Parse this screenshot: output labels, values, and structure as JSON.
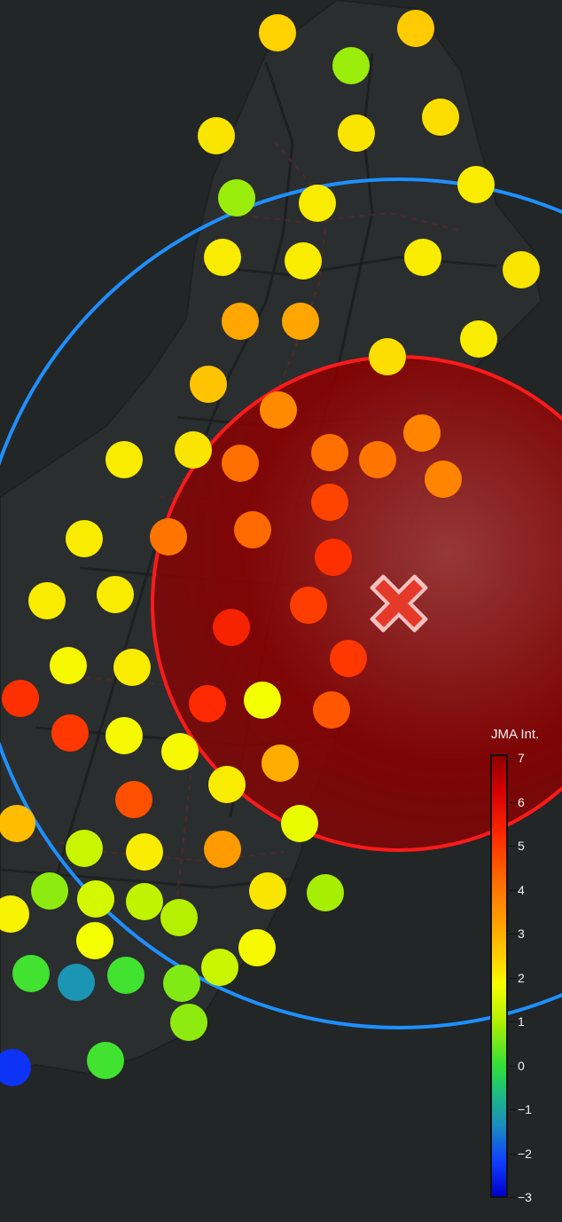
{
  "legend": {
    "title": "JMA Int.",
    "min": -3,
    "max": 7,
    "ticks": [
      "7",
      "6",
      "5",
      "4",
      "3",
      "2",
      "1",
      "0",
      "−1",
      "−2",
      "−3"
    ]
  },
  "epicenter": {
    "icon": "x-mark-icon",
    "color": "#e53a2a",
    "outline": "#f6c1c1"
  },
  "rings": {
    "s_wave_color": "#ff1a1a",
    "p_wave_color": "#1e90ff",
    "s_wave_fill": "#8b0000"
  },
  "stations_intensity": [
    {
      "name": "s01",
      "value": 2.3
    },
    {
      "name": "s02",
      "value": 0.8
    },
    {
      "name": "s03",
      "value": 2.4
    },
    {
      "name": "s04",
      "value": 2.0
    },
    {
      "name": "s05",
      "value": 2.0
    },
    {
      "name": "s06",
      "value": 2.1
    },
    {
      "name": "s07",
      "value": 0.8
    },
    {
      "name": "s08",
      "value": 1.9
    },
    {
      "name": "s09",
      "value": 1.9
    },
    {
      "name": "s10",
      "value": 1.9
    },
    {
      "name": "s11",
      "value": 1.9
    },
    {
      "name": "s12",
      "value": 1.9
    },
    {
      "name": "s13",
      "value": 2.0
    },
    {
      "name": "s14",
      "value": 2.9
    },
    {
      "name": "s15",
      "value": 2.9
    },
    {
      "name": "s16",
      "value": 1.9
    },
    {
      "name": "s17",
      "value": 2.5
    },
    {
      "name": "s18",
      "value": 2.1
    },
    {
      "name": "s19",
      "value": 3.4
    },
    {
      "name": "s20",
      "value": 3.5
    },
    {
      "name": "s21",
      "value": 1.9
    },
    {
      "name": "s22",
      "value": 2.0
    },
    {
      "name": "s23",
      "value": 3.9
    },
    {
      "name": "s24",
      "value": 3.9
    },
    {
      "name": "s25",
      "value": 3.8
    },
    {
      "name": "s26",
      "value": 3.5
    },
    {
      "name": "s27",
      "value": 4.6
    },
    {
      "name": "s28",
      "value": 1.9
    },
    {
      "name": "s29",
      "value": 3.8
    },
    {
      "name": "s30",
      "value": 4.0
    },
    {
      "name": "s31",
      "value": 4.9
    },
    {
      "name": "s32",
      "value": 1.9
    },
    {
      "name": "s33",
      "value": 1.9
    },
    {
      "name": "s34",
      "value": 4.7
    },
    {
      "name": "s35",
      "value": 5.2
    },
    {
      "name": "s36",
      "value": 4.8
    },
    {
      "name": "s37",
      "value": 1.7
    },
    {
      "name": "s38",
      "value": 1.9
    },
    {
      "name": "s39",
      "value": 5.0
    },
    {
      "name": "s40",
      "value": 1.6
    },
    {
      "name": "s41",
      "value": 4.3
    },
    {
      "name": "s42",
      "value": 4.9
    },
    {
      "name": "s43",
      "value": 4.8
    },
    {
      "name": "s44",
      "value": 1.7
    },
    {
      "name": "s45",
      "value": 1.7
    },
    {
      "name": "s46",
      "value": 2.8
    },
    {
      "name": "s47",
      "value": 4.4
    },
    {
      "name": "s48",
      "value": 1.9
    },
    {
      "name": "s49",
      "value": 2.6
    },
    {
      "name": "s50",
      "value": 1.2
    },
    {
      "name": "s51",
      "value": 1.9
    },
    {
      "name": "s52",
      "value": 3.1
    },
    {
      "name": "s53",
      "value": 1.5
    },
    {
      "name": "s54",
      "value": 2.0
    },
    {
      "name": "s55",
      "value": 0.9
    },
    {
      "name": "s56",
      "value": 0.7
    },
    {
      "name": "s57",
      "value": 1.3
    },
    {
      "name": "s58",
      "value": 1.1
    },
    {
      "name": "s59",
      "value": 1.8
    },
    {
      "name": "s60",
      "value": 1.0
    },
    {
      "name": "s61",
      "value": 1.6
    },
    {
      "name": "s62",
      "value": 1.7
    },
    {
      "name": "s63",
      "value": 1.2
    },
    {
      "name": "s64",
      "value": 0.1
    },
    {
      "name": "s65",
      "value": -0.9
    },
    {
      "name": "s66",
      "value": 0.1
    },
    {
      "name": "s67",
      "value": 0.6
    },
    {
      "name": "s68",
      "value": 0.7
    },
    {
      "name": "s69",
      "value": -2.2
    },
    {
      "name": "s70",
      "value": 0.1
    }
  ]
}
